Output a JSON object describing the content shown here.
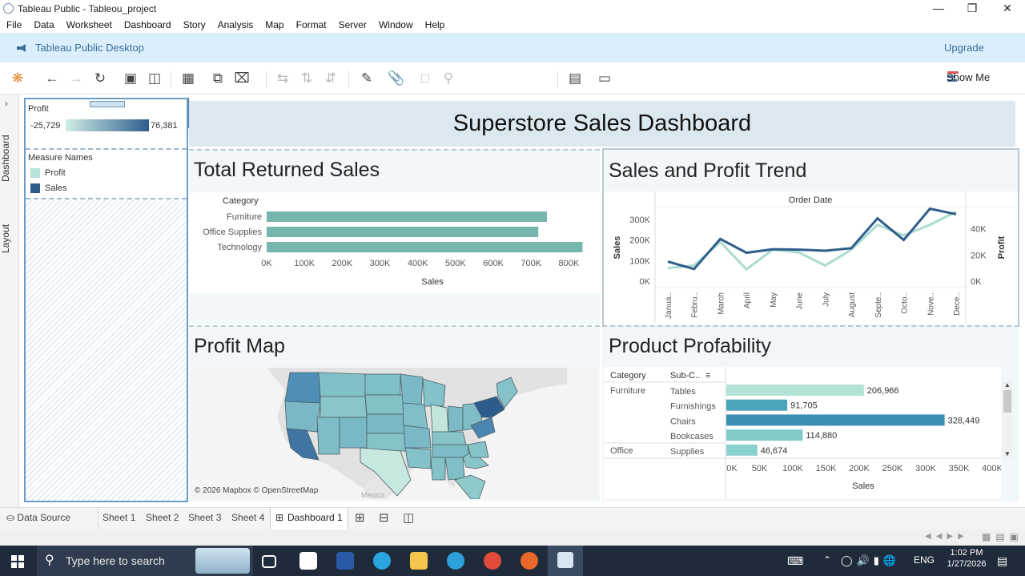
{
  "window": {
    "title": "Tableau Public - Tableou_project"
  },
  "menu": [
    "File",
    "Data",
    "Worksheet",
    "Dashboard",
    "Story",
    "Analysis",
    "Map",
    "Format",
    "Server",
    "Window",
    "Help"
  ],
  "banner": {
    "label": "Tableau Public Desktop",
    "upgrade": "Upgrade"
  },
  "toolbar": {
    "show_me": "Show Me"
  },
  "sidetabs": {
    "dashboard": "Dashboard",
    "layout": "Layout"
  },
  "legend": {
    "profit_title": "Profit",
    "profit_min": "-25,729",
    "profit_max": "76,381",
    "measure_title": "Measure Names",
    "items": [
      {
        "label": "Profit",
        "color": "#b7e3d8"
      },
      {
        "label": "Sales",
        "color": "#2f5d8a"
      }
    ]
  },
  "dashboard": {
    "title": "Superstore Sales Dashboard",
    "returned": {
      "title": "Total Returned Sales"
    },
    "trend": {
      "title": "Sales and Profit Trend"
    },
    "map": {
      "title": "Profit Map",
      "credit": "© 2026 Mapbox © OpenStreetMap",
      "label_mexico": "Mexico"
    },
    "product": {
      "title": "Product Profability"
    }
  },
  "chart_data": [
    {
      "type": "bar",
      "orientation": "horizontal",
      "category_header": "Category",
      "categories": [
        "Furniture",
        "Office Supplies",
        "Technology"
      ],
      "values": [
        742000,
        719000,
        836000
      ],
      "xlabel": "Sales",
      "xlim": [
        0,
        850000
      ],
      "ticks": [
        "0K",
        "100K",
        "200K",
        "300K",
        "400K",
        "500K",
        "600K",
        "700K",
        "800K"
      ],
      "color": "#76b7ad"
    },
    {
      "type": "line",
      "header": "Order Date",
      "x": [
        "Janua..",
        "Febru..",
        "March",
        "April",
        "May",
        "June",
        "July",
        "August",
        "Septe..",
        "Octo..",
        "Nove..",
        "Dece.."
      ],
      "ylabel": "Sales",
      "y2label": "Profit",
      "series": [
        {
          "name": "Sales",
          "color": "#2f5d8a",
          "values": [
            95000,
            59000,
            205000,
            138000,
            155000,
            153000,
            148000,
            160000,
            305000,
            200000,
            352000,
            325000
          ]
        },
        {
          "name": "Profit",
          "color": "#a9dccf",
          "values": [
            10000,
            12000,
            30000,
            9000,
            24000,
            22000,
            12000,
            24000,
            43000,
            35000,
            43000,
            53000
          ]
        }
      ],
      "yticks": [
        "0K",
        "100K",
        "200K",
        "300K"
      ],
      "y2ticks": [
        "0K",
        "20K",
        "40K"
      ]
    },
    {
      "type": "bar",
      "orientation": "horizontal",
      "headers": {
        "category": "Category",
        "subcategory": "Sub-C.."
      },
      "rows": [
        {
          "category": "Furniture",
          "subcategory": "Tables",
          "value": 206966,
          "label": "206,966",
          "color": "#b2e3d6"
        },
        {
          "category": "",
          "subcategory": "Furnishings",
          "value": 91705,
          "label": "91,705",
          "color": "#4aa3b7"
        },
        {
          "category": "",
          "subcategory": "Chairs",
          "value": 328449,
          "label": "328,449",
          "color": "#3b8fb0"
        },
        {
          "category": "",
          "subcategory": "Bookcases",
          "value": 114880,
          "label": "114,880",
          "color": "#7fcac6"
        },
        {
          "category": "Office",
          "subcategory": "Supplies",
          "value": 46674,
          "label": "46,674",
          "color": "#8ad0cc"
        }
      ],
      "xlabel": "Sales",
      "xlim": [
        0,
        400000
      ],
      "ticks": [
        "0K",
        "50K",
        "100K",
        "150K",
        "200K",
        "250K",
        "300K",
        "350K",
        "400K"
      ]
    }
  ],
  "sheets": {
    "data_source": "Data Source",
    "tabs": [
      "Sheet 1",
      "Sheet 2",
      "Sheet 3",
      "Sheet 4"
    ],
    "active": "Dashboard 1"
  },
  "taskbar": {
    "search_placeholder": "Type here to search",
    "lang": "ENG",
    "time": "1:02 PM",
    "date": "1/27/2026"
  }
}
